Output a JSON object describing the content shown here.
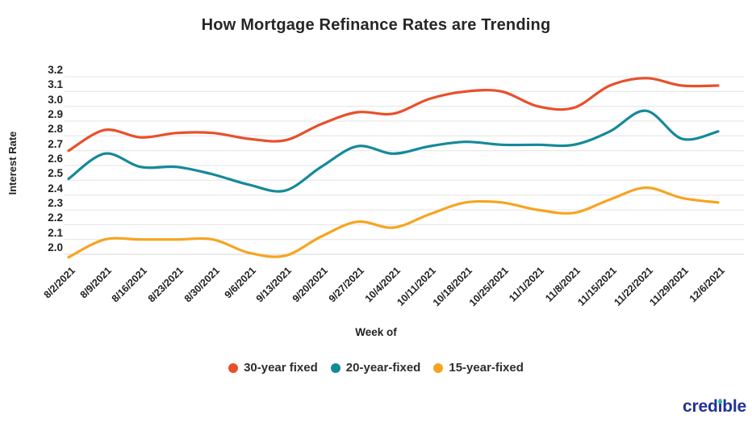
{
  "title": "How Mortgage Refinance Rates are Trending",
  "y_axis": {
    "label": "Interest Rate",
    "ticks": [
      "3.2",
      "3.1",
      "3.0",
      "2.9",
      "2.8",
      "2.7",
      "2.6",
      "2.5",
      "2.4",
      "2.3",
      "2.2",
      "2.1",
      "2.0"
    ]
  },
  "x_axis": {
    "label": "Week of"
  },
  "legend": [
    {
      "label": "30-year fixed",
      "color": "#E8502A"
    },
    {
      "label": "20-year-fixed",
      "color": "#15899B"
    },
    {
      "label": "15-year-fixed",
      "color": "#F7A420"
    }
  ],
  "logo": {
    "text": "credible",
    "color": "#223297",
    "accent_color": "#1fbfa0"
  },
  "colors": {
    "gridline": "#e3e3e3",
    "bottom_gridline": "#d6d6d6",
    "text": "#222222"
  },
  "chart_data": {
    "type": "line",
    "title": "How Mortgage Refinance Rates are Trending",
    "xlabel": "Week of",
    "ylabel": "Interest Rate",
    "ylim": [
      2.0,
      3.2
    ],
    "ytick_step": 0.1,
    "grid": true,
    "legend_position": "bottom",
    "line_style": "smooth",
    "categories": [
      "8/2/2021",
      "8/9/2021",
      "8/16/2021",
      "8/23/2021",
      "8/30/2021",
      "9/6/2021",
      "9/13/2021",
      "9/20/2021",
      "9/27/2021",
      "10/4/2021",
      "10/11/2021",
      "10/18/2021",
      "10/25/2021",
      "11/1/2021",
      "11/8/2021",
      "11/15/2021",
      "11/22/2021",
      "11/29/2021",
      "12/6/2021"
    ],
    "series": [
      {
        "name": "30-year fixed",
        "color": "#E8502A",
        "values": [
          2.7,
          2.84,
          2.79,
          2.82,
          2.82,
          2.78,
          2.77,
          2.88,
          2.96,
          2.95,
          3.05,
          3.1,
          3.1,
          3.0,
          2.99,
          3.14,
          3.19,
          3.14,
          3.14
        ]
      },
      {
        "name": "20-year-fixed",
        "color": "#15899B",
        "values": [
          2.51,
          2.68,
          2.59,
          2.59,
          2.54,
          2.47,
          2.43,
          2.59,
          2.73,
          2.68,
          2.73,
          2.76,
          2.74,
          2.74,
          2.74,
          2.83,
          2.97,
          2.78,
          2.83
        ]
      },
      {
        "name": "15-year-fixed",
        "color": "#F7A420",
        "values": [
          1.98,
          2.1,
          2.1,
          2.1,
          2.1,
          2.01,
          1.99,
          2.12,
          2.22,
          2.18,
          2.27,
          2.35,
          2.35,
          2.3,
          2.28,
          2.37,
          2.45,
          2.38,
          2.35
        ]
      }
    ]
  }
}
